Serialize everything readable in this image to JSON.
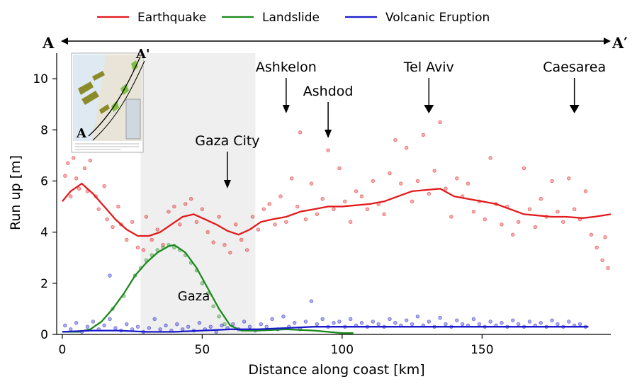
{
  "legend": {
    "items": [
      {
        "label": "Earthquake",
        "color": "#e31a1c"
      },
      {
        "label": "Landslide",
        "color": "#1b8a1b"
      },
      {
        "label": "Volcanic Eruption",
        "color": "#1a1acc"
      }
    ]
  },
  "profile": {
    "start_label": "A",
    "end_label": "A′"
  },
  "inset": {
    "top_label": "A'",
    "bottom_label": "A"
  },
  "annotations": [
    {
      "label": "Ashkelon",
      "x": 80
    },
    {
      "label": "Ashdod",
      "x": 95
    },
    {
      "label": "Tel Aviv",
      "x": 131
    },
    {
      "label": "Caesarea",
      "x": 183
    },
    {
      "label": "Gaza City",
      "x": 59
    }
  ],
  "region_label": "Gaza",
  "chart_data": {
    "type": "line",
    "xlabel": "Distance along coast [km]",
    "ylabel": "Run up [m]",
    "xlim": [
      -2,
      196
    ],
    "ylim": [
      0,
      11
    ],
    "xticks": [
      0,
      50,
      100,
      150
    ],
    "yticks": [
      0,
      2,
      4,
      6,
      8,
      10
    ],
    "shaded_region": [
      28,
      69
    ],
    "grid": false,
    "legend_position": "top",
    "series": [
      {
        "name": "Earthquake",
        "color": "#e31a1c",
        "x": [
          0,
          3,
          7,
          11,
          15,
          19,
          23,
          27,
          31,
          35,
          39,
          43,
          47,
          51,
          55,
          59,
          63,
          67,
          71,
          75,
          80,
          85,
          90,
          95,
          100,
          105,
          110,
          115,
          120,
          125,
          130,
          135,
          140,
          145,
          150,
          155,
          160,
          165,
          170,
          175,
          180,
          186,
          190,
          196
        ],
        "y": [
          5.2,
          5.6,
          5.9,
          5.5,
          5.0,
          4.5,
          4.1,
          3.85,
          3.85,
          4.0,
          4.3,
          4.6,
          4.7,
          4.5,
          4.3,
          4.05,
          3.9,
          4.1,
          4.4,
          4.5,
          4.6,
          4.8,
          4.9,
          5.0,
          5.0,
          5.05,
          5.1,
          5.2,
          5.4,
          5.6,
          5.65,
          5.7,
          5.4,
          5.3,
          5.2,
          5.1,
          4.9,
          4.7,
          4.65,
          4.6,
          4.6,
          4.55,
          4.6,
          4.7
        ]
      },
      {
        "name": "Landslide",
        "color": "#1b8a1b",
        "x": [
          0,
          6,
          10,
          14,
          18,
          22,
          26,
          30,
          34,
          38,
          40,
          44,
          48,
          52,
          56,
          60,
          64,
          70,
          80,
          90,
          100,
          104
        ],
        "y": [
          0.1,
          0.1,
          0.2,
          0.5,
          1.0,
          1.6,
          2.3,
          2.8,
          3.2,
          3.45,
          3.5,
          3.2,
          2.6,
          1.8,
          1.0,
          0.35,
          0.15,
          0.15,
          0.2,
          0.15,
          0.05,
          0.05
        ]
      },
      {
        "name": "Volcanic Eruption",
        "color": "#1a1acc",
        "x": [
          0,
          10,
          20,
          30,
          40,
          50,
          60,
          70,
          80,
          90,
          100,
          110,
          120,
          130,
          140,
          150,
          160,
          170,
          180,
          188
        ],
        "y": [
          0.1,
          0.15,
          0.15,
          0.1,
          0.1,
          0.15,
          0.2,
          0.2,
          0.25,
          0.3,
          0.3,
          0.3,
          0.3,
          0.3,
          0.3,
          0.3,
          0.3,
          0.3,
          0.3,
          0.3
        ]
      }
    ],
    "scatter": [
      {
        "name": "Earthquake",
        "color": "#e31a1c",
        "points": [
          [
            1,
            6.2
          ],
          [
            2,
            6.7
          ],
          [
            3,
            5.4
          ],
          [
            4,
            6.9
          ],
          [
            5,
            6.1
          ],
          [
            6,
            5.7
          ],
          [
            8,
            6.5
          ],
          [
            9,
            5.6
          ],
          [
            10,
            6.8
          ],
          [
            12,
            5.4
          ],
          [
            13,
            4.9
          ],
          [
            15,
            5.8
          ],
          [
            16,
            4.5
          ],
          [
            18,
            4.2
          ],
          [
            20,
            5.0
          ],
          [
            21,
            4.3
          ],
          [
            23,
            3.7
          ],
          [
            25,
            4.4
          ],
          [
            27,
            3.4
          ],
          [
            29,
            3.3
          ],
          [
            30,
            4.6
          ],
          [
            32,
            3.7
          ],
          [
            34,
            4.1
          ],
          [
            36,
            3.5
          ],
          [
            38,
            4.8
          ],
          [
            40,
            5.0
          ],
          [
            42,
            4.3
          ],
          [
            44,
            5.1
          ],
          [
            46,
            5.3
          ],
          [
            48,
            4.4
          ],
          [
            50,
            4.9
          ],
          [
            52,
            4.0
          ],
          [
            54,
            3.6
          ],
          [
            56,
            4.6
          ],
          [
            58,
            3.5
          ],
          [
            60,
            3.2
          ],
          [
            62,
            4.3
          ],
          [
            64,
            3.7
          ],
          [
            66,
            3.3
          ],
          [
            68,
            4.6
          ],
          [
            70,
            4.1
          ],
          [
            72,
            4.9
          ],
          [
            74,
            5.1
          ],
          [
            76,
            4.3
          ],
          [
            78,
            5.4
          ],
          [
            80,
            4.4
          ],
          [
            82,
            6.1
          ],
          [
            84,
            5.0
          ],
          [
            85,
            7.9
          ],
          [
            87,
            4.5
          ],
          [
            89,
            5.9
          ],
          [
            91,
            4.7
          ],
          [
            93,
            5.3
          ],
          [
            95,
            7.2
          ],
          [
            97,
            4.9
          ],
          [
            99,
            6.5
          ],
          [
            101,
            5.2
          ],
          [
            103,
            4.4
          ],
          [
            105,
            5.6
          ],
          [
            107,
            5.4
          ],
          [
            109,
            4.9
          ],
          [
            111,
            6.0
          ],
          [
            113,
            5.1
          ],
          [
            115,
            4.7
          ],
          [
            117,
            6.3
          ],
          [
            119,
            7.6
          ],
          [
            121,
            5.9
          ],
          [
            123,
            7.3
          ],
          [
            125,
            5.2
          ],
          [
            127,
            6.0
          ],
          [
            129,
            7.8
          ],
          [
            131,
            5.5
          ],
          [
            133,
            6.4
          ],
          [
            135,
            8.3
          ],
          [
            137,
            5.7
          ],
          [
            139,
            4.6
          ],
          [
            141,
            6.1
          ],
          [
            143,
            5.4
          ],
          [
            145,
            5.9
          ],
          [
            147,
            4.8
          ],
          [
            149,
            5.2
          ],
          [
            151,
            4.5
          ],
          [
            153,
            6.9
          ],
          [
            155,
            5.1
          ],
          [
            157,
            4.3
          ],
          [
            159,
            5.0
          ],
          [
            161,
            3.9
          ],
          [
            163,
            4.4
          ],
          [
            165,
            6.5
          ],
          [
            167,
            4.9
          ],
          [
            169,
            4.2
          ],
          [
            171,
            5.3
          ],
          [
            173,
            4.6
          ],
          [
            175,
            6.0
          ],
          [
            177,
            4.8
          ],
          [
            179,
            4.4
          ],
          [
            181,
            6.1
          ],
          [
            183,
            4.9
          ],
          [
            185,
            4.5
          ],
          [
            187,
            5.6
          ],
          [
            189,
            3.9
          ],
          [
            191,
            3.4
          ],
          [
            193,
            2.9
          ],
          [
            194,
            3.8
          ],
          [
            195,
            2.6
          ]
        ]
      },
      {
        "name": "Landslide",
        "color": "#1b8a1b",
        "points": [
          [
            18,
            1.0
          ],
          [
            22,
            1.5
          ],
          [
            26,
            2.3
          ],
          [
            28,
            2.6
          ],
          [
            30,
            2.9
          ],
          [
            32,
            3.1
          ],
          [
            34,
            3.3
          ],
          [
            36,
            3.4
          ],
          [
            38,
            3.5
          ],
          [
            40,
            3.4
          ],
          [
            42,
            3.3
          ],
          [
            44,
            3.1
          ],
          [
            46,
            2.8
          ],
          [
            48,
            2.5
          ],
          [
            50,
            2.0
          ],
          [
            52,
            1.6
          ],
          [
            54,
            1.1
          ],
          [
            56,
            0.7
          ],
          [
            58,
            0.4
          ]
        ]
      },
      {
        "name": "Volcanic Eruption",
        "color": "#1a1acc",
        "points": [
          [
            1,
            0.35
          ],
          [
            3,
            0.2
          ],
          [
            5,
            0.45
          ],
          [
            7,
            0.1
          ],
          [
            9,
            0.3
          ],
          [
            11,
            0.5
          ],
          [
            13,
            0.2
          ],
          [
            15,
            0.35
          ],
          [
            17,
            0.6
          ],
          [
            17,
            2.3
          ],
          [
            19,
            0.25
          ],
          [
            21,
            0.15
          ],
          [
            23,
            0.4
          ],
          [
            25,
            0.2
          ],
          [
            27,
            0.3
          ],
          [
            29,
            0.1
          ],
          [
            31,
            0.25
          ],
          [
            33,
            0.6
          ],
          [
            35,
            0.2
          ],
          [
            37,
            0.35
          ],
          [
            39,
            0.15
          ],
          [
            41,
            0.4
          ],
          [
            43,
            0.2
          ],
          [
            45,
            0.3
          ],
          [
            47,
            0.15
          ],
          [
            49,
            0.45
          ],
          [
            51,
            0.2
          ],
          [
            53,
            0.3
          ],
          [
            55,
            0.1
          ],
          [
            57,
            0.35
          ],
          [
            59,
            0.25
          ],
          [
            61,
            0.4
          ],
          [
            63,
            0.2
          ],
          [
            65,
            0.5
          ],
          [
            67,
            0.3
          ],
          [
            69,
            0.15
          ],
          [
            71,
            0.4
          ],
          [
            73,
            0.3
          ],
          [
            75,
            0.6
          ],
          [
            77,
            0.2
          ],
          [
            79,
            0.7
          ],
          [
            81,
            0.3
          ],
          [
            83,
            0.45
          ],
          [
            85,
            0.2
          ],
          [
            87,
            0.5
          ],
          [
            89,
            1.3
          ],
          [
            91,
            0.4
          ],
          [
            93,
            0.6
          ],
          [
            95,
            0.3
          ],
          [
            97,
            0.45
          ],
          [
            99,
            0.5
          ],
          [
            101,
            0.3
          ],
          [
            103,
            0.6
          ],
          [
            105,
            0.35
          ],
          [
            107,
            0.45
          ],
          [
            109,
            0.3
          ],
          [
            111,
            0.5
          ],
          [
            113,
            0.4
          ],
          [
            115,
            0.3
          ],
          [
            117,
            0.6
          ],
          [
            119,
            0.45
          ],
          [
            121,
            0.35
          ],
          [
            123,
            0.55
          ],
          [
            125,
            0.4
          ],
          [
            127,
            0.7
          ],
          [
            129,
            0.35
          ],
          [
            131,
            0.5
          ],
          [
            133,
            0.3
          ],
          [
            135,
            0.65
          ],
          [
            137,
            0.4
          ],
          [
            139,
            0.3
          ],
          [
            141,
            0.55
          ],
          [
            143,
            0.4
          ],
          [
            145,
            0.35
          ],
          [
            147,
            0.6
          ],
          [
            149,
            0.4
          ],
          [
            151,
            0.3
          ],
          [
            153,
            0.5
          ],
          [
            155,
            0.35
          ],
          [
            157,
            0.45
          ],
          [
            159,
            0.3
          ],
          [
            161,
            0.55
          ],
          [
            163,
            0.4
          ],
          [
            165,
            0.3
          ],
          [
            167,
            0.5
          ],
          [
            169,
            0.35
          ],
          [
            171,
            0.45
          ],
          [
            173,
            0.3
          ],
          [
            175,
            0.55
          ],
          [
            177,
            0.4
          ],
          [
            179,
            0.3
          ],
          [
            181,
            0.5
          ],
          [
            183,
            0.35
          ],
          [
            185,
            0.4
          ],
          [
            187,
            0.3
          ]
        ]
      }
    ]
  }
}
